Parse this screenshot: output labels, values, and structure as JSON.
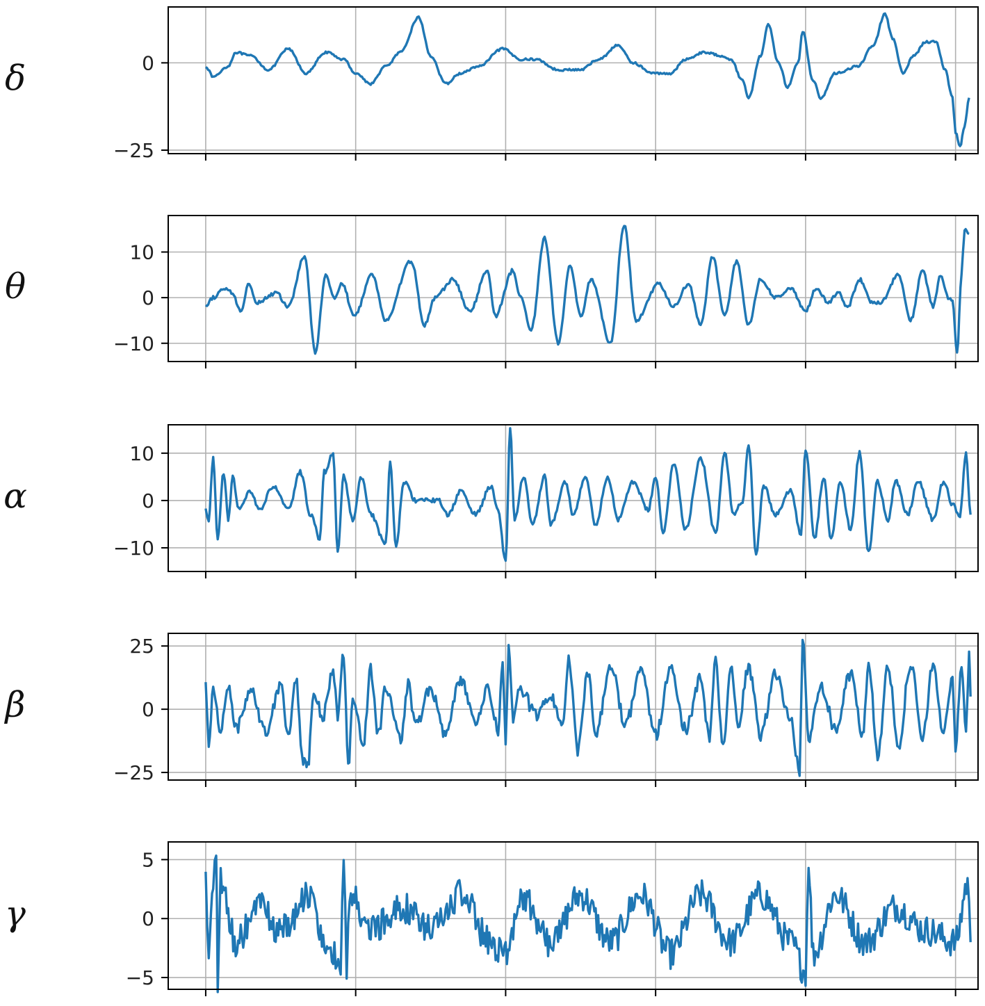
{
  "chart_data": [
    {
      "type": "line",
      "label": "δ",
      "ylim": [
        -26,
        16
      ],
      "yticks": [
        0,
        -25
      ],
      "ytick_labels": [
        "0",
        "−25"
      ],
      "xlim": [
        -0.25,
        5.15
      ],
      "xticks": [
        0,
        1,
        2,
        3,
        4,
        5
      ],
      "xtick_labels": [
        "",
        "",
        "",
        "",
        "",
        ""
      ],
      "grid": true,
      "color": "#1f77b4",
      "anchors": [
        [
          0,
          -1
        ],
        [
          0.05,
          -4
        ],
        [
          0.15,
          -1
        ],
        [
          0.2,
          3
        ],
        [
          0.3,
          2
        ],
        [
          0.42,
          -2
        ],
        [
          0.55,
          4
        ],
        [
          0.67,
          -3
        ],
        [
          0.8,
          3
        ],
        [
          0.92,
          1
        ],
        [
          1.0,
          -3
        ],
        [
          1.1,
          -6
        ],
        [
          1.2,
          -1
        ],
        [
          1.3,
          3
        ],
        [
          1.42,
          13
        ],
        [
          1.5,
          2
        ],
        [
          1.6,
          -6
        ],
        [
          1.7,
          -3
        ],
        [
          1.82,
          -1
        ],
        [
          1.98,
          4
        ],
        [
          2.1,
          1
        ],
        [
          2.2,
          1
        ],
        [
          2.35,
          -2
        ],
        [
          2.5,
          -2
        ],
        [
          2.62,
          1
        ],
        [
          2.75,
          5
        ],
        [
          2.85,
          0
        ],
        [
          2.98,
          -3
        ],
        [
          3.1,
          -3
        ],
        [
          3.2,
          1
        ],
        [
          3.32,
          3
        ],
        [
          3.45,
          2
        ],
        [
          3.5,
          1
        ],
        [
          3.58,
          -5
        ],
        [
          3.62,
          -10
        ],
        [
          3.7,
          2
        ],
        [
          3.75,
          11
        ],
        [
          3.82,
          0
        ],
        [
          3.88,
          -7
        ],
        [
          3.95,
          0
        ],
        [
          3.98,
          9
        ],
        [
          4.05,
          -5
        ],
        [
          4.1,
          -10
        ],
        [
          4.2,
          -3
        ],
        [
          4.35,
          -1
        ],
        [
          4.45,
          5
        ],
        [
          4.53,
          14
        ],
        [
          4.58,
          7
        ],
        [
          4.65,
          -3
        ],
        [
          4.72,
          2
        ],
        [
          4.8,
          6
        ],
        [
          4.87,
          6
        ],
        [
          4.93,
          -2
        ],
        [
          4.98,
          -10
        ],
        [
          5.0,
          -20
        ],
        [
          5.03,
          -24
        ],
        [
          5.06,
          -18
        ],
        [
          5.09,
          -10
        ]
      ],
      "noise": 0.3
    },
    {
      "type": "line",
      "label": "θ",
      "ylim": [
        -14,
        18
      ],
      "yticks": [
        10,
        0,
        -10
      ],
      "ytick_labels": [
        "10",
        "0",
        "−10"
      ],
      "xlim": [
        -0.25,
        5.15
      ],
      "xticks": [
        0,
        1,
        2,
        3,
        4,
        5
      ],
      "xtick_labels": [
        "",
        "",
        "",
        "",
        "",
        ""
      ],
      "grid": true,
      "color": "#1f77b4",
      "anchors": [
        [
          0,
          -2
        ],
        [
          0.05,
          0
        ],
        [
          0.12,
          2
        ],
        [
          0.18,
          1
        ],
        [
          0.23,
          -3
        ],
        [
          0.29,
          3
        ],
        [
          0.34,
          -1
        ],
        [
          0.47,
          1
        ],
        [
          0.55,
          -2
        ],
        [
          0.66,
          9
        ],
        [
          0.73,
          -12
        ],
        [
          0.8,
          5
        ],
        [
          0.86,
          0
        ],
        [
          0.91,
          3
        ],
        [
          0.99,
          -4
        ],
        [
          1.11,
          5
        ],
        [
          1.2,
          -5
        ],
        [
          1.37,
          8
        ],
        [
          1.46,
          -6
        ],
        [
          1.53,
          0
        ],
        [
          1.65,
          4
        ],
        [
          1.76,
          -3
        ],
        [
          1.88,
          6
        ],
        [
          1.93,
          -4
        ],
        [
          2.05,
          6
        ],
        [
          2.1,
          0
        ],
        [
          2.17,
          -7
        ],
        [
          2.26,
          13
        ],
        [
          2.35,
          -10
        ],
        [
          2.43,
          7
        ],
        [
          2.5,
          -4
        ],
        [
          2.57,
          4
        ],
        [
          2.7,
          -10
        ],
        [
          2.79,
          16
        ],
        [
          2.87,
          -5
        ],
        [
          3.02,
          3
        ],
        [
          3.12,
          -2
        ],
        [
          3.22,
          3
        ],
        [
          3.3,
          -6
        ],
        [
          3.38,
          9
        ],
        [
          3.46,
          -4
        ],
        [
          3.54,
          8
        ],
        [
          3.62,
          -6
        ],
        [
          3.7,
          4
        ],
        [
          3.8,
          0
        ],
        [
          3.9,
          2
        ],
        [
          4.0,
          -3
        ],
        [
          4.07,
          2
        ],
        [
          4.15,
          -1
        ],
        [
          4.22,
          1
        ],
        [
          4.28,
          -2
        ],
        [
          4.36,
          4
        ],
        [
          4.44,
          -1
        ],
        [
          4.5,
          -1
        ],
        [
          4.62,
          5
        ],
        [
          4.7,
          -5
        ],
        [
          4.78,
          6
        ],
        [
          4.85,
          -2
        ],
        [
          4.9,
          5
        ],
        [
          4.95,
          0
        ],
        [
          4.98,
          -1
        ],
        [
          5.01,
          -12
        ],
        [
          5.04,
          5
        ],
        [
          5.06,
          15
        ],
        [
          5.09,
          14
        ]
      ],
      "noise": 0.4
    },
    {
      "type": "line",
      "label": "α",
      "ylim": [
        -15,
        16
      ],
      "yticks": [
        10,
        0,
        -10
      ],
      "ytick_labels": [
        "10",
        "0",
        "−10"
      ],
      "xlim": [
        -0.25,
        5.15
      ],
      "xticks": [
        0,
        1,
        2,
        3,
        4,
        5
      ],
      "xtick_labels": [
        "",
        "",
        "",
        "",
        "",
        ""
      ],
      "grid": true,
      "color": "#1f77b4",
      "anchors": [
        [
          0,
          -2
        ],
        [
          0.02,
          -4
        ],
        [
          0.05,
          9
        ],
        [
          0.08,
          -8
        ],
        [
          0.12,
          6
        ],
        [
          0.15,
          -4
        ],
        [
          0.18,
          5
        ],
        [
          0.22,
          -2
        ],
        [
          0.3,
          2
        ],
        [
          0.36,
          -2
        ],
        [
          0.45,
          3
        ],
        [
          0.55,
          -2
        ],
        [
          0.63,
          6
        ],
        [
          0.7,
          -3
        ],
        [
          0.76,
          -8
        ],
        [
          0.79,
          6
        ],
        [
          0.85,
          10
        ],
        [
          0.88,
          -11
        ],
        [
          0.92,
          5
        ],
        [
          0.98,
          -4
        ],
        [
          1.04,
          5
        ],
        [
          1.1,
          -3
        ],
        [
          1.2,
          -9
        ],
        [
          1.23,
          8
        ],
        [
          1.27,
          -10
        ],
        [
          1.32,
          4
        ],
        [
          1.4,
          0
        ],
        [
          1.55,
          0
        ],
        [
          1.62,
          -3
        ],
        [
          1.7,
          2
        ],
        [
          1.8,
          -3
        ],
        [
          1.9,
          3
        ],
        [
          1.95,
          -2
        ],
        [
          2.0,
          -13
        ],
        [
          2.03,
          15
        ],
        [
          2.06,
          -4
        ],
        [
          2.12,
          5
        ],
        [
          2.18,
          -5
        ],
        [
          2.26,
          5
        ],
        [
          2.3,
          -5
        ],
        [
          2.4,
          4
        ],
        [
          2.45,
          -3
        ],
        [
          2.53,
          5
        ],
        [
          2.6,
          -5
        ],
        [
          2.68,
          5
        ],
        [
          2.75,
          -4
        ],
        [
          2.85,
          4
        ],
        [
          2.95,
          -2
        ],
        [
          3.0,
          5
        ],
        [
          3.05,
          -7
        ],
        [
          3.12,
          8
        ],
        [
          3.2,
          -6
        ],
        [
          3.3,
          9
        ],
        [
          3.4,
          -7
        ],
        [
          3.46,
          10
        ],
        [
          3.52,
          -3
        ],
        [
          3.58,
          0
        ],
        [
          3.62,
          12
        ],
        [
          3.67,
          -11
        ],
        [
          3.72,
          3
        ],
        [
          3.8,
          -3
        ],
        [
          3.9,
          2
        ],
        [
          3.97,
          -7
        ],
        [
          4.0,
          11
        ],
        [
          4.06,
          -8
        ],
        [
          4.12,
          5
        ],
        [
          4.17,
          -8
        ],
        [
          4.23,
          4
        ],
        [
          4.3,
          -6
        ],
        [
          4.36,
          10
        ],
        [
          4.42,
          -11
        ],
        [
          4.48,
          4
        ],
        [
          4.55,
          -4
        ],
        [
          4.6,
          4
        ],
        [
          4.68,
          -3
        ],
        [
          4.75,
          4
        ],
        [
          4.85,
          -4
        ],
        [
          4.92,
          4
        ],
        [
          4.98,
          -1
        ],
        [
          5.03,
          -3
        ],
        [
          5.07,
          10
        ],
        [
          5.1,
          -3
        ]
      ],
      "noise": 0.5
    },
    {
      "type": "line",
      "label": "β",
      "ylim": [
        -28,
        30
      ],
      "yticks": [
        25,
        0,
        -25
      ],
      "ytick_labels": [
        "25",
        "0",
        "−25"
      ],
      "xlim": [
        -0.25,
        5.15
      ],
      "xticks": [
        0,
        1,
        2,
        3,
        4,
        5
      ],
      "xtick_labels": [
        "",
        "",
        "",
        "",
        "",
        ""
      ],
      "grid": true,
      "color": "#1f77b4",
      "anchors": [
        [
          0,
          10
        ],
        [
          0.02,
          -16
        ],
        [
          0.05,
          8
        ],
        [
          0.1,
          -8
        ],
        [
          0.15,
          10
        ],
        [
          0.2,
          -8
        ],
        [
          0.3,
          8
        ],
        [
          0.4,
          -9
        ],
        [
          0.5,
          10
        ],
        [
          0.55,
          -10
        ],
        [
          0.6,
          12
        ],
        [
          0.65,
          -20
        ],
        [
          0.68,
          -23
        ],
        [
          0.72,
          6
        ],
        [
          0.78,
          -3
        ],
        [
          0.85,
          15
        ],
        [
          0.88,
          -2
        ],
        [
          0.92,
          22
        ],
        [
          0.95,
          -23
        ],
        [
          0.98,
          5
        ],
        [
          1.05,
          -14
        ],
        [
          1.1,
          16
        ],
        [
          1.15,
          -10
        ],
        [
          1.2,
          8
        ],
        [
          1.3,
          -12
        ],
        [
          1.35,
          10
        ],
        [
          1.4,
          -6
        ],
        [
          1.5,
          8
        ],
        [
          1.6,
          -10
        ],
        [
          1.7,
          12
        ],
        [
          1.8,
          -6
        ],
        [
          1.88,
          8
        ],
        [
          1.95,
          -8
        ],
        [
          1.98,
          18
        ],
        [
          2.0,
          -16
        ],
        [
          2.02,
          23
        ],
        [
          2.05,
          -3
        ],
        [
          2.1,
          8
        ],
        [
          2.2,
          -2
        ],
        [
          2.3,
          5
        ],
        [
          2.38,
          -5
        ],
        [
          2.42,
          20
        ],
        [
          2.48,
          -16
        ],
        [
          2.55,
          14
        ],
        [
          2.6,
          -10
        ],
        [
          2.7,
          18
        ],
        [
          2.8,
          -6
        ],
        [
          2.9,
          16
        ],
        [
          3.0,
          -10
        ],
        [
          3.1,
          16
        ],
        [
          3.2,
          -8
        ],
        [
          3.3,
          12
        ],
        [
          3.36,
          -12
        ],
        [
          3.4,
          20
        ],
        [
          3.45,
          -16
        ],
        [
          3.5,
          16
        ],
        [
          3.55,
          -6
        ],
        [
          3.62,
          16
        ],
        [
          3.7,
          -10
        ],
        [
          3.8,
          14
        ],
        [
          3.9,
          -4
        ],
        [
          3.96,
          -25
        ],
        [
          3.98,
          28
        ],
        [
          4.02,
          -12
        ],
        [
          4.1,
          10
        ],
        [
          4.2,
          -8
        ],
        [
          4.3,
          14
        ],
        [
          4.38,
          -10
        ],
        [
          4.42,
          18
        ],
        [
          4.48,
          -18
        ],
        [
          4.55,
          16
        ],
        [
          4.62,
          -14
        ],
        [
          4.7,
          18
        ],
        [
          4.78,
          -12
        ],
        [
          4.85,
          18
        ],
        [
          4.92,
          -10
        ],
        [
          4.98,
          14
        ],
        [
          5.0,
          -16
        ],
        [
          5.04,
          18
        ],
        [
          5.07,
          -9
        ],
        [
          5.09,
          23
        ],
        [
          5.1,
          5
        ]
      ],
      "noise": 2.5
    },
    {
      "type": "line",
      "label": "γ",
      "ylim": [
        -6,
        6.5
      ],
      "yticks": [
        5,
        0,
        -5
      ],
      "ytick_labels": [
        "5",
        "0",
        "−5"
      ],
      "xlim": [
        -0.25,
        5.15
      ],
      "xticks": [
        0,
        1,
        2,
        3,
        4,
        5
      ],
      "xtick_labels": [
        "",
        "",
        "",
        "",
        "",
        ""
      ],
      "grid": true,
      "color": "#1f77b4",
      "anchors": [
        [
          0,
          4
        ],
        [
          0.02,
          -3
        ],
        [
          0.05,
          3
        ],
        [
          0.07,
          6
        ],
        [
          0.08,
          -5.5
        ],
        [
          0.1,
          3
        ],
        [
          0.2,
          -2
        ],
        [
          0.35,
          1
        ],
        [
          0.5,
          -1
        ],
        [
          0.7,
          2
        ],
        [
          0.8,
          -2
        ],
        [
          0.9,
          -4
        ],
        [
          0.92,
          5
        ],
        [
          0.94,
          -4.5
        ],
        [
          0.96,
          2
        ],
        [
          1.1,
          -1
        ],
        [
          1.3,
          1
        ],
        [
          1.5,
          -1
        ],
        [
          1.7,
          2
        ],
        [
          1.9,
          -2
        ],
        [
          2.0,
          -3
        ],
        [
          2.1,
          2
        ],
        [
          2.3,
          -2
        ],
        [
          2.5,
          2
        ],
        [
          2.7,
          -2
        ],
        [
          2.9,
          2
        ],
        [
          3.1,
          -3
        ],
        [
          3.3,
          2
        ],
        [
          3.5,
          -2
        ],
        [
          3.7,
          2
        ],
        [
          3.9,
          -2
        ],
        [
          4.0,
          -4.5
        ],
        [
          4.02,
          5
        ],
        [
          4.05,
          -3
        ],
        [
          4.2,
          2
        ],
        [
          4.4,
          -2
        ],
        [
          4.6,
          1
        ],
        [
          4.8,
          -1
        ],
        [
          5.0,
          -2
        ],
        [
          5.08,
          3
        ],
        [
          5.1,
          -2
        ]
      ],
      "noise": 1.3
    }
  ]
}
